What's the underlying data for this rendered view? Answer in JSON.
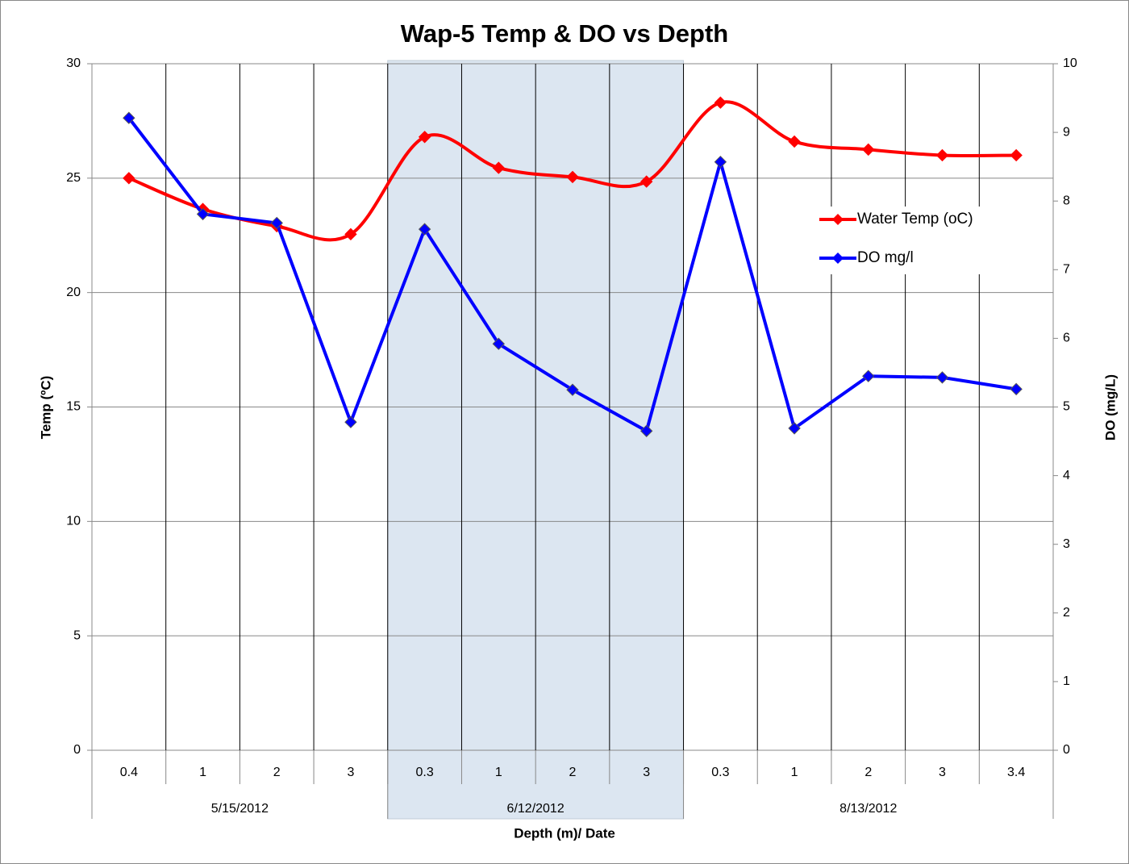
{
  "chart_data": {
    "type": "line",
    "title": "Wap-5 Temp & DO vs Depth",
    "x_label": "Depth (m)/ Date",
    "y_label": "Temp (ºC)",
    "y2_label": "DO (mg/L)",
    "categories": [
      "0.4",
      "1",
      "2",
      "3",
      "0.3",
      "1",
      "2",
      "3",
      "0.3",
      "1",
      "2",
      "3",
      "3.4"
    ],
    "category_groups": [
      {
        "label": "5/15/2012",
        "count": 4,
        "shaded": false
      },
      {
        "label": "6/12/2012",
        "count": 4,
        "shaded": true
      },
      {
        "label": "8/13/2012",
        "count": 5,
        "shaded": false
      }
    ],
    "series": [
      {
        "name": "Water Temp (oC)",
        "color": "#ff0000",
        "smooth": true,
        "values": [
          25.0,
          23.65,
          22.9,
          22.55,
          26.8,
          25.45,
          25.05,
          24.85,
          28.3,
          26.6,
          26.25,
          26.0,
          26.0
        ]
      },
      {
        "name": "DO mg/l",
        "color": "#0000ff",
        "axis": "y2",
        "smooth": false,
        "values": [
          9.21,
          7.81,
          7.68,
          4.78,
          7.59,
          5.92,
          5.25,
          4.65,
          8.57,
          4.69,
          5.45,
          5.43,
          5.26
        ]
      }
    ],
    "ylim": [
      0,
      30
    ],
    "yticks": [
      0,
      5,
      10,
      15,
      20,
      25,
      30
    ],
    "y2lim": [
      0,
      10
    ],
    "y2ticks": [
      0,
      1,
      2,
      3,
      4,
      5,
      6,
      7,
      8,
      9,
      10
    ],
    "grid": true,
    "legend": "upper right"
  }
}
